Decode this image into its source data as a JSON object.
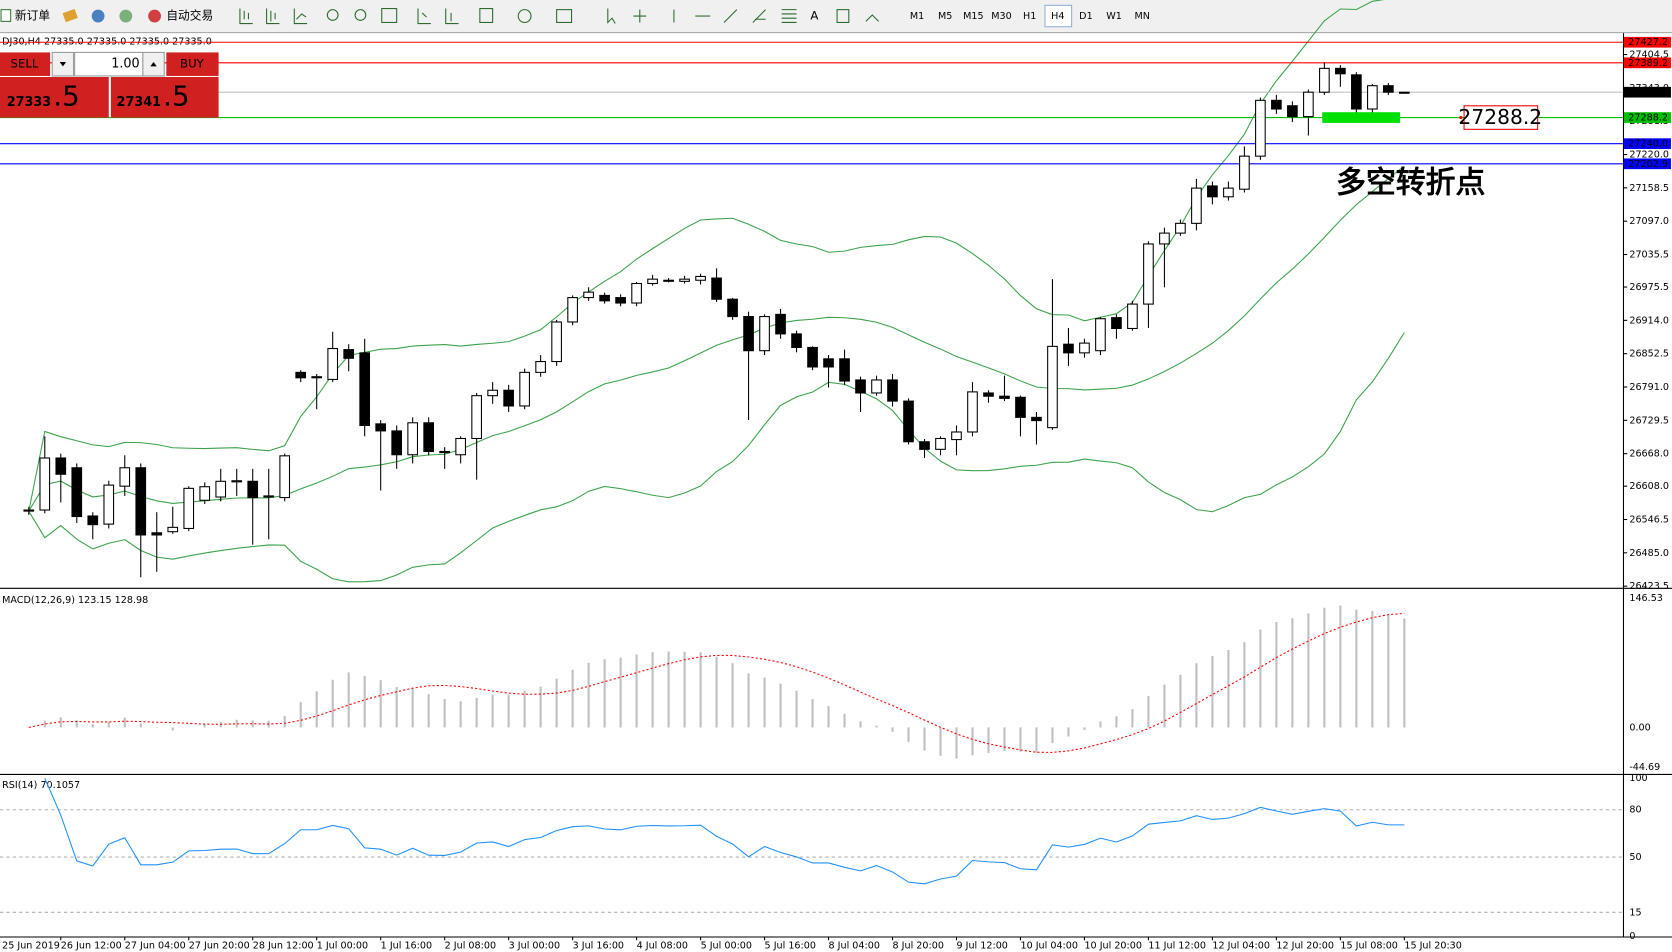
{
  "toolbar": {
    "new_order": "新订单",
    "auto_trading": "自动交易",
    "timeframes": [
      "M1",
      "M5",
      "M15",
      "M30",
      "H1",
      "H4",
      "D1",
      "W1",
      "MN"
    ],
    "active_timeframe": "H4"
  },
  "trade_panel": {
    "info": "DJ30,H4  27335.0 27335.0 27335.0 27335.0",
    "sell": "SELL",
    "lot": "1.00",
    "buy": "BUY",
    "bid_main": "27333",
    "bid_frac": ".5",
    "ask_main": "27341",
    "ask_frac": ".5"
  },
  "chart_data": {
    "type": "candlestick",
    "start_label": "25 Jun 2019",
    "categories": [
      null,
      null,
      "26 Jun 12:00",
      null,
      null,
      null,
      "27 Jun 04:00",
      null,
      null,
      null,
      "27 Jun 20:00",
      null,
      null,
      null,
      "28 Jun 12:00",
      null,
      null,
      null,
      "1 Jul 00:00",
      null,
      null,
      null,
      "1 Jul 16:00",
      null,
      null,
      null,
      "2 Jul 08:00",
      null,
      null,
      null,
      "3 Jul 00:00",
      null,
      null,
      null,
      "3 Jul 16:00",
      null,
      null,
      null,
      "4 Jul 08:00",
      null,
      null,
      null,
      "5 Jul 00:00",
      null,
      null,
      null,
      "5 Jul 16:00",
      null,
      null,
      null,
      "8 Jul 04:00",
      null,
      null,
      null,
      "8 Jul 20:00",
      null,
      null,
      null,
      "9 Jul 12:00",
      null,
      null,
      null,
      "10 Jul 04:00",
      null,
      null,
      null,
      "10 Jul 20:00",
      null,
      null,
      null,
      "11 Jul 12:00",
      null,
      null,
      null,
      "12 Jul 04:00",
      null,
      null,
      null,
      "12 Jul 20:00",
      null,
      null,
      null,
      "15 Jul 08:00",
      null,
      null,
      null,
      "15 Jul 20:30"
    ],
    "open": [
      26564,
      26564,
      26660,
      26642,
      26553,
      26538,
      26608,
      26642,
      26522,
      26524,
      26530,
      26582,
      26588,
      26616,
      26617,
      26590,
      26587,
      26818,
      26810,
      26805,
      26860,
      26854,
      26723,
      26710,
      26666,
      26725,
      26672,
      26666,
      26696,
      26775,
      26785,
      26756,
      26818,
      26838,
      26911,
      26956,
      26960,
      26956,
      26946,
      26982,
      26988,
      26986,
      26988,
      26992,
      26953,
      26921,
      26858,
      26925,
      26889,
      26864,
      26843,
      26843,
      26804,
      26780,
      26804,
      26765,
      26690,
      26676,
      26694,
      26708,
      26780,
      26774,
      26772,
      26735,
      26716,
      26870,
      26854,
      26858,
      26919,
      26899,
      26944,
      27055,
      27075,
      27093,
      27162,
      27142,
      27156,
      27217,
      27320,
      27310,
      27290,
      27335,
      27379,
      27367,
      27304,
      27347,
      27335
    ],
    "high": [
      26570,
      26700,
      26668,
      26650,
      26560,
      26618,
      26665,
      26650,
      26560,
      26570,
      26608,
      26615,
      26640,
      26640,
      26640,
      26640,
      26668,
      26822,
      26815,
      26893,
      26870,
      26880,
      26730,
      26720,
      26735,
      26735,
      26680,
      26700,
      26780,
      26800,
      26795,
      26825,
      26850,
      26915,
      26960,
      26975,
      26965,
      26962,
      26985,
      26998,
      26992,
      26996,
      27000,
      27010,
      26955,
      26930,
      26925,
      26935,
      26895,
      26866,
      26850,
      26860,
      26810,
      26812,
      26815,
      26770,
      26695,
      26700,
      26720,
      26800,
      26785,
      26812,
      26775,
      26745,
      26990,
      26900,
      26880,
      26920,
      26925,
      26950,
      27060,
      27085,
      27100,
      27175,
      27170,
      27170,
      27235,
      27325,
      27330,
      27318,
      27340,
      27390,
      27385,
      27372,
      27350,
      27352,
      27335
    ],
    "low": [
      26555,
      26558,
      26578,
      26540,
      26510,
      26530,
      26590,
      26440,
      26450,
      26520,
      26525,
      26575,
      26580,
      26590,
      26500,
      26510,
      26580,
      26800,
      26750,
      26800,
      26820,
      26700,
      26600,
      26640,
      26650,
      26665,
      26640,
      26650,
      26620,
      26760,
      26745,
      26750,
      26810,
      26830,
      26905,
      26950,
      26945,
      26940,
      26940,
      26978,
      26984,
      26982,
      26980,
      26948,
      26915,
      26730,
      26850,
      26880,
      26855,
      26822,
      26790,
      26795,
      26745,
      26775,
      26755,
      26685,
      26660,
      26665,
      26665,
      26700,
      26762,
      26765,
      26700,
      26685,
      26712,
      26830,
      26845,
      26850,
      26880,
      26895,
      26900,
      26975,
      27070,
      27080,
      27128,
      27135,
      27150,
      27210,
      27295,
      27280,
      27255,
      27330,
      27345,
      27295,
      27295,
      27330,
      27335
    ],
    "close": [
      26562,
      26660,
      26630,
      26552,
      26537,
      26610,
      26642,
      26518,
      26518,
      26532,
      26604,
      26607,
      26617,
      26618,
      26587,
      26588,
      26664,
      26808,
      26808,
      26862,
      26844,
      26720,
      26710,
      26666,
      26725,
      26672,
      26670,
      26696,
      26775,
      26785,
      26756,
      26818,
      26838,
      26911,
      26956,
      26966,
      26950,
      26946,
      26982,
      26990,
      26988,
      26990,
      26995,
      26953,
      26921,
      26858,
      26921,
      26889,
      26864,
      26828,
      26828,
      26802,
      26780,
      26804,
      26765,
      26690,
      26676,
      26696,
      26708,
      26782,
      26774,
      26770,
      26735,
      26729,
      26866,
      26854,
      26872,
      26917,
      26899,
      26944,
      27055,
      27075,
      27093,
      27158,
      27142,
      27158,
      27217,
      27320,
      27304,
      27290,
      27335,
      27379,
      27369,
      27304,
      27347,
      27335,
      27335
    ],
    "ylim": [
      26421.5,
      27440
    ],
    "yticks": [
      {
        "value": 27404.5,
        "label": "27404.5"
      },
      {
        "value": 27343,
        "label": "27343.0"
      },
      {
        "value": 27281.5,
        "label": "27281.5"
      },
      {
        "value": 27220,
        "label": "27220.0"
      },
      {
        "value": 27158.5,
        "label": "27158.5"
      },
      {
        "value": 27097,
        "label": "27097.0"
      },
      {
        "value": 27035.5,
        "label": "27035.5"
      },
      {
        "value": 26975.5,
        "label": "26975.5"
      },
      {
        "value": 26914,
        "label": "26914.0"
      },
      {
        "value": 26852.5,
        "label": "26852.5"
      },
      {
        "value": 26791,
        "label": "26791.0"
      },
      {
        "value": 26729.5,
        "label": "26729.5"
      },
      {
        "value": 26668,
        "label": "26668.0"
      },
      {
        "value": 26608,
        "label": "26608.0"
      },
      {
        "value": 26546.5,
        "label": "26546.5"
      },
      {
        "value": 26485,
        "label": "26485.0"
      },
      {
        "value": 26423.5,
        "label": "26423.5"
      }
    ],
    "last_price": {
      "value": 27335,
      "label": "27335.0"
    },
    "levels": [
      {
        "value": 27427.2,
        "color": "#ff0000"
      },
      {
        "value": 27389.2,
        "color": "#ff0000"
      },
      {
        "value": 27288.2,
        "color": "#00c000"
      },
      {
        "value": 27240,
        "label": "27240.0",
        "color": "#0000ff"
      },
      {
        "value": 27202.9,
        "color": "#0000ff"
      }
    ],
    "annotation": "多空转折点",
    "macd": {
      "label": "MACD(12,26,9) 123.15 128.98",
      "ylim": [
        -44.69,
        146.53
      ],
      "yticks": [
        146.53,
        {
          "value": 0,
          "label": "0.00"
        },
        -44.69
      ]
    },
    "rsi": {
      "label": "RSI(14) 70.1057",
      "ylim": [
        0,
        100
      ],
      "yticks": [
        100,
        80,
        50,
        15,
        0
      ]
    }
  }
}
